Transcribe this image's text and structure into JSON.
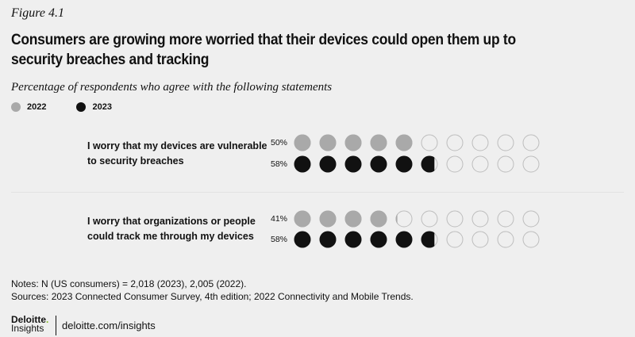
{
  "figure_label": "Figure 4.1",
  "notes": "Notes: N (US consumers) = 2,018 (2023), 2,005 (2022).",
  "sources": "Sources: 2023 Connected Consumer Survey, 4th edition; 2022 Connectivity and Mobile Trends.",
  "footer": {
    "logo_top": "Deloitte",
    "logo_bottom": "Insights",
    "url": "deloitte.com/insights"
  },
  "chart_data": {
    "type": "dot-matrix",
    "title": "Consumers are growing more worried that their devices could open them up to security breaches and tracking",
    "subtitle": "Percentage of respondents who agree with the following statements",
    "unit_per_dot": 10,
    "dots_total": 10,
    "legend": [
      {
        "name": "2022",
        "color": "#a9a9a9"
      },
      {
        "name": "2023",
        "color": "#111111"
      }
    ],
    "categories": [
      "I worry that my devices are vulnerable to security breaches",
      "I worry that organizations or people could track me through my devices"
    ],
    "category_lines": [
      [
        "I worry that my devices are vulnerable",
        "to security breaches"
      ],
      [
        "I worry that organizations or people",
        "could track me through my devices"
      ]
    ],
    "series": [
      {
        "name": "2022",
        "values": [
          50,
          41
        ],
        "labels": [
          "50%",
          "41%"
        ]
      },
      {
        "name": "2023",
        "values": [
          58,
          58
        ],
        "labels": [
          "58%",
          "58%"
        ]
      }
    ],
    "empty_dot_stroke": "#bdbdbd"
  }
}
